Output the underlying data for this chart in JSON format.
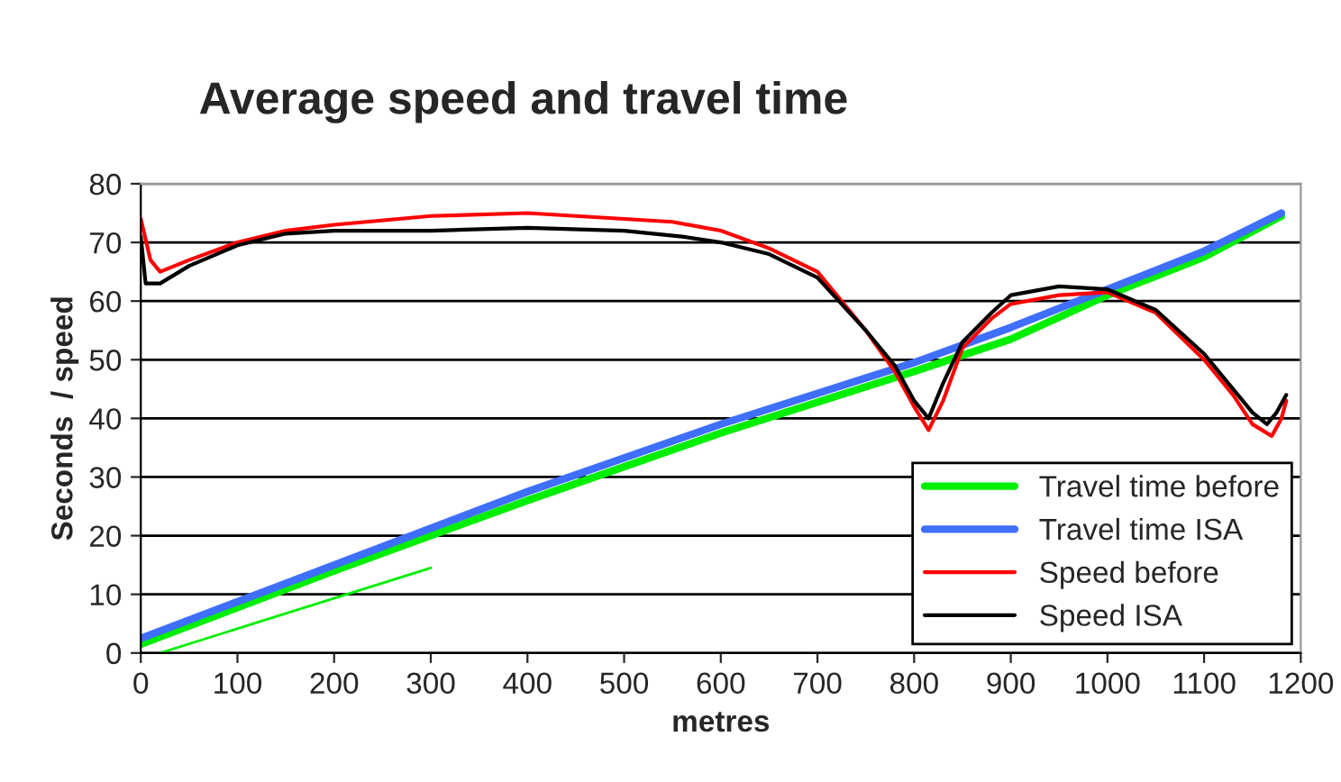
{
  "chart_data": {
    "type": "line",
    "title": "Average speed and travel time",
    "xlabel": "metres",
    "ylabel": "Seconds  / speed",
    "xlim": [
      0,
      1200
    ],
    "xticks": [
      0,
      100,
      200,
      300,
      400,
      500,
      600,
      700,
      800,
      900,
      1000,
      1100,
      1200
    ],
    "ylim": [
      0,
      80
    ],
    "yticks": [
      0,
      10,
      20,
      30,
      40,
      50,
      60,
      70,
      80
    ],
    "grid": "y",
    "legend": "bottom right",
    "marker": "none",
    "line_style": "solid",
    "series": [
      {
        "name": "Travel time before",
        "color": "#00ee00",
        "x": [
          0,
          200,
          400,
          600,
          800,
          900,
          1000,
          1100,
          1180
        ],
        "values": [
          1.5,
          14,
          26,
          37.5,
          48,
          53.5,
          61,
          67.5,
          74.5
        ]
      },
      {
        "name": "Travel time ISA",
        "color": "#3f6fff",
        "x": [
          0,
          200,
          400,
          600,
          800,
          900,
          1000,
          1100,
          1180
        ],
        "values": [
          2.5,
          15,
          27.5,
          39,
          49.5,
          55.5,
          62,
          68.5,
          75
        ]
      },
      {
        "name": "Speed before",
        "color": "#ff0000",
        "x": [
          0,
          10,
          20,
          50,
          100,
          150,
          200,
          300,
          400,
          500,
          550,
          600,
          650,
          700,
          750,
          780,
          800,
          815,
          830,
          850,
          880,
          900,
          950,
          1000,
          1050,
          1100,
          1130,
          1150,
          1170,
          1180,
          1185
        ],
        "values": [
          74,
          67,
          65,
          67,
          70,
          72,
          73,
          74.5,
          75,
          74,
          73.5,
          72,
          69,
          65,
          55,
          48,
          42,
          38,
          43,
          52,
          57,
          59.5,
          61,
          61.5,
          58,
          50,
          44,
          39,
          37,
          40,
          43
        ]
      },
      {
        "name": "Speed ISA",
        "color": "#000000",
        "x": [
          0,
          5,
          20,
          50,
          100,
          150,
          200,
          300,
          400,
          500,
          560,
          600,
          650,
          700,
          750,
          780,
          800,
          815,
          830,
          850,
          880,
          900,
          950,
          1000,
          1050,
          1100,
          1130,
          1150,
          1165,
          1175,
          1185
        ],
        "values": [
          71,
          63,
          63,
          66,
          69.5,
          71.5,
          72,
          72,
          72.5,
          72,
          71,
          70,
          68,
          64,
          55,
          49,
          43,
          40,
          46,
          53,
          58,
          61,
          62.5,
          62,
          58.5,
          51,
          45,
          41,
          39,
          41,
          44
        ]
      },
      {
        "color": "#00ee00",
        "x": [
          20,
          300
        ],
        "values": [
          0,
          14.5
        ]
      }
    ]
  }
}
